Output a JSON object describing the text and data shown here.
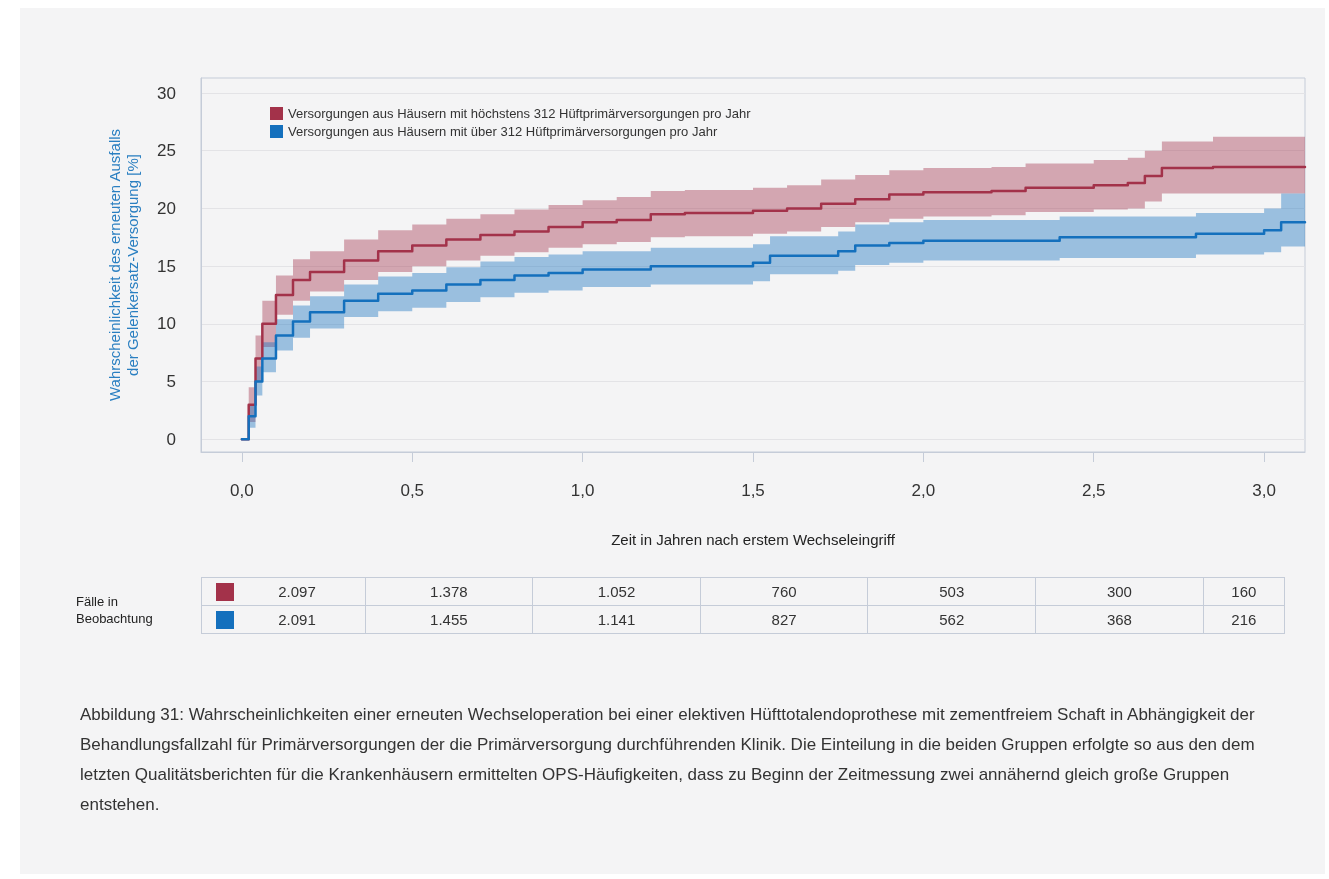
{
  "chart_data": {
    "type": "step",
    "xlabel": "Zeit in Jahren nach erstem Wechseleingriff",
    "ylabel": "Wahrscheinlichkeit des erneuten Ausfalls der Gelenkersatz-Versorgung [%]",
    "xlim": [
      -0.12,
      3.12
    ],
    "xticks": [
      {
        "value": 0,
        "label": "0,0"
      },
      {
        "value": 0.5,
        "label": "0,5"
      },
      {
        "value": 1,
        "label": "1,0"
      },
      {
        "value": 1.5,
        "label": "1,5"
      },
      {
        "value": 2,
        "label": "2,0"
      },
      {
        "value": 2.5,
        "label": "2,5"
      },
      {
        "value": 3,
        "label": "3,0"
      }
    ],
    "ylim": [
      -1.1,
      31.3
    ],
    "yticks": [
      0,
      5,
      10,
      15,
      20,
      25,
      30
    ],
    "grid": "y",
    "legend": "top left",
    "line_style": "solid",
    "marker": "none",
    "series": [
      {
        "name": "Versorgungen aus Häusern mit höchstens 312 Hüftprimärversorgungen pro Jahr",
        "color": "#a3324a",
        "x": [
          0,
          0.02,
          0.04,
          0.06,
          0.1,
          0.15,
          0.2,
          0.3,
          0.4,
          0.5,
          0.6,
          0.7,
          0.8,
          0.9,
          1.0,
          1.1,
          1.2,
          1.3,
          1.5,
          1.6,
          1.7,
          1.8,
          1.9,
          2.0,
          2.2,
          2.3,
          2.5,
          2.6,
          2.65,
          2.7,
          2.85,
          3.12
        ],
        "values": [
          0,
          3,
          7,
          10,
          12.5,
          13.8,
          14.5,
          15.5,
          16.3,
          16.8,
          17.3,
          17.7,
          18.0,
          18.4,
          18.8,
          19.0,
          19.5,
          19.6,
          19.8,
          20.0,
          20.4,
          20.8,
          21.2,
          21.4,
          21.5,
          21.8,
          22.0,
          22.2,
          22.8,
          23.5,
          23.6,
          23.6
        ],
        "lower": [
          0,
          1.5,
          5,
          8,
          10.8,
          12,
          12.8,
          13.8,
          14.5,
          15,
          15.5,
          15.9,
          16.2,
          16.6,
          16.9,
          17.1,
          17.5,
          17.6,
          17.8,
          18,
          18.4,
          18.8,
          19.1,
          19.3,
          19.4,
          19.7,
          19.9,
          20,
          20.6,
          21.3,
          21.3,
          21.3
        ],
        "upper": [
          0,
          4.5,
          9,
          12,
          14.2,
          15.6,
          16.3,
          17.3,
          18.1,
          18.6,
          19.1,
          19.5,
          19.9,
          20.3,
          20.7,
          21,
          21.5,
          21.6,
          21.8,
          22,
          22.5,
          22.9,
          23.3,
          23.5,
          23.6,
          23.9,
          24.2,
          24.4,
          25,
          25.8,
          26.2,
          26.2
        ]
      },
      {
        "name": "Versorgungen aus Häusern mit über 312 Hüftprimärversorgungen pro Jahr",
        "color": "#1470bd",
        "x": [
          0,
          0.02,
          0.04,
          0.06,
          0.1,
          0.15,
          0.2,
          0.3,
          0.4,
          0.5,
          0.6,
          0.7,
          0.8,
          0.9,
          1.0,
          1.2,
          1.5,
          1.55,
          1.75,
          1.8,
          1.9,
          2.0,
          2.4,
          2.8,
          3.0,
          3.05,
          3.12
        ],
        "values": [
          0,
          2,
          5,
          7,
          9,
          10.2,
          11,
          12,
          12.6,
          12.9,
          13.4,
          13.8,
          14.2,
          14.4,
          14.7,
          15.0,
          15.3,
          15.9,
          16.3,
          16.8,
          17.0,
          17.2,
          17.5,
          17.8,
          18.1,
          18.8,
          18.8
        ],
        "lower": [
          0,
          1,
          3.8,
          5.8,
          7.7,
          8.8,
          9.6,
          10.6,
          11.1,
          11.4,
          11.9,
          12.3,
          12.7,
          12.9,
          13.2,
          13.4,
          13.7,
          14.3,
          14.6,
          15.1,
          15.3,
          15.5,
          15.7,
          16,
          16.2,
          16.7,
          16.7
        ],
        "upper": [
          0,
          3,
          6.3,
          8.4,
          10.4,
          11.6,
          12.4,
          13.4,
          14.1,
          14.4,
          14.9,
          15.4,
          15.8,
          16,
          16.3,
          16.6,
          16.9,
          17.6,
          18,
          18.6,
          18.8,
          19,
          19.3,
          19.6,
          20,
          21.3,
          21.3
        ]
      }
    ],
    "annotations": [
      "Fälle in Beobachtung",
      "2.097",
      "1.378",
      "1.052",
      "760",
      "503",
      "300",
      "160",
      "2.091",
      "1.455",
      "1.141",
      "827",
      "562",
      "368",
      "216",
      "Abbildung 31: Wahrscheinlichkeiten einer erneuten Wechseloperation bei einer elektiven Hüfttotalendoprothese mit zementfreiem Schaft in Abhängigkeit der Behandlungsfallzahl für Primärversorgungen der die Primärversorgung durchführenden Klinik. Die Einteilung in die beiden Gruppen erfolgte so aus den dem letzten Qualitätsberichten für die Krankenhäusern ermittelten OPS-Häufigkeiten, dass zu Beginn der Zeitmessung zwei annähernd gleich große Gruppen entstehen."
    ]
  }
}
